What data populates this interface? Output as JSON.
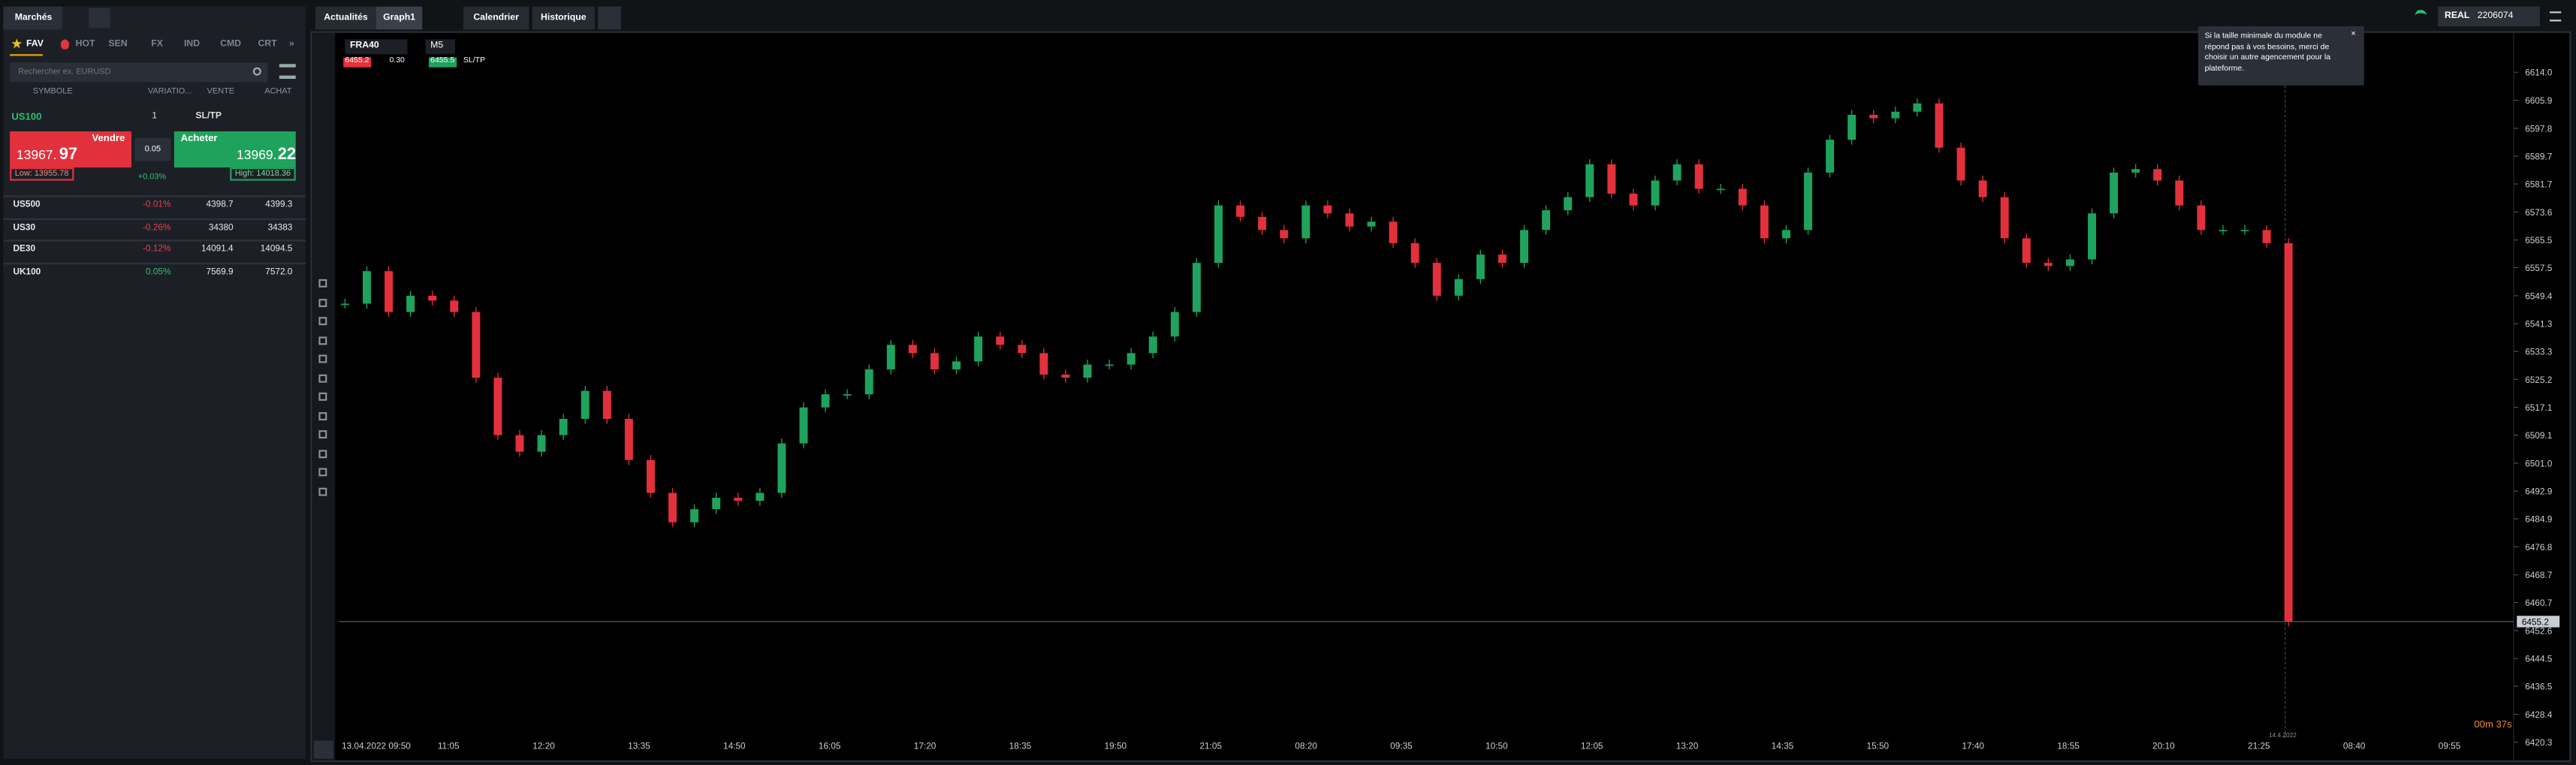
{
  "left_panel": {
    "title": "Marchés",
    "tabs": [
      "FAV",
      "HOT",
      "SEN",
      "FX",
      "IND",
      "CMD",
      "CRT",
      "»"
    ],
    "search_placeholder": "Rechercher ex. EURUSD",
    "columns": [
      "SYMBOLE",
      "VARIATIO...",
      "VENTE",
      "ACHAT"
    ],
    "active": {
      "symbol": "US100",
      "quantity": "1",
      "sltp": "SL/TP",
      "sell_label": "Vendre",
      "sell_price": "13967.",
      "sell_price_big": "97",
      "buy_label": "Acheter",
      "buy_price": "13969.",
      "buy_price_big": "22",
      "spread": "0.05",
      "low": "Low: 13955.78",
      "high": "High: 14018.36",
      "change": "+0.03%"
    },
    "rows": [
      [
        "US500",
        "-0.01%",
        "4398.7",
        "4399.3"
      ],
      [
        "US30",
        "-0.26%",
        "34380",
        "34383"
      ],
      [
        "DE30",
        "-0.12%",
        "14091.4",
        "14094.5"
      ],
      [
        "UK100",
        "0.05%",
        "7569.9",
        "7572.0"
      ]
    ]
  },
  "top_tabs": [
    "Actualités",
    "Graph1",
    "Calendrier",
    "Historique"
  ],
  "account": {
    "mode": "REAL",
    "id": "2206074"
  },
  "notification": "Si la taille minimale du module ne répond pas à vos besoins, merci de choisir un autre agencement pour la plateforme.",
  "chart": {
    "symbol": "FRA40",
    "timeframe": "M5",
    "bid": "6455.2",
    "spread": "0.30",
    "ask": "6455.5",
    "sltp": "SL/TP",
    "yticks": [
      {
        "value": 6614.0,
        "label": "6614.0"
      },
      {
        "value": 6605.9,
        "label": "6605.9"
      },
      {
        "value": 6597.8,
        "label": "6597.8"
      },
      {
        "value": 6589.7,
        "label": "6589.7"
      },
      {
        "value": 6581.7,
        "label": "6581.7"
      },
      {
        "value": 6573.6,
        "label": "6573.6"
      },
      {
        "value": 6565.5,
        "label": "6565.5"
      },
      {
        "value": 6557.5,
        "label": "6557.5"
      },
      {
        "value": 6549.4,
        "label": "6549.4"
      },
      {
        "value": 6541.3,
        "label": "6541.3"
      },
      {
        "value": 6533.3,
        "label": "6533.3"
      },
      {
        "value": 6525.2,
        "label": "6525.2"
      },
      {
        "value": 6517.1,
        "label": "6517.1"
      },
      {
        "value": 6509.1,
        "label": "6509.1"
      },
      {
        "value": 6501.0,
        "label": "6501.0"
      },
      {
        "value": 6492.9,
        "label": "6492.9"
      },
      {
        "value": 6484.9,
        "label": "6484.9"
      },
      {
        "value": 6476.8,
        "label": "6476.8"
      },
      {
        "value": 6468.7,
        "label": "6468.7"
      },
      {
        "value": 6460.7,
        "label": "6460.7"
      },
      {
        "value": 6452.6,
        "label": "6452.6"
      },
      {
        "value": 6444.5,
        "label": "6444.5"
      },
      {
        "value": 6436.5,
        "label": "6436.5"
      },
      {
        "value": 6428.4,
        "label": "6428.4"
      },
      {
        "value": 6420.3,
        "label": "6420.3"
      }
    ],
    "x_labels": [
      "13.04.2022 09:50",
      "11:05",
      "12:20",
      "13:35",
      "14:50",
      "16:05",
      "17:20",
      "18:35",
      "19:50",
      "21:05",
      "08:20",
      "09:35",
      "10:50",
      "12:05",
      "13:20",
      "14:35",
      "15:50",
      "17:40",
      "18:55",
      "20:10",
      "21:25",
      "08:40",
      "09:55"
    ],
    "last_price": 6455.2,
    "countdown": "00m 37s",
    "date_marker": "14.4.2022",
    "closes": [
      6547.1,
      6556.5,
      6544.7,
      6549.4,
      6548.0,
      6544.7,
      6525.7,
      6509.1,
      6504.3,
      6509.1,
      6513.8,
      6521.9,
      6513.8,
      6501.9,
      6492.4,
      6483.9,
      6487.7,
      6491.0,
      6490.1,
      6492.4,
      6506.7,
      6517.1,
      6520.9,
      6520.9,
      6528.1,
      6535.2,
      6532.8,
      6528.1,
      6530.4,
      6537.6,
      6535.2,
      6532.8,
      6526.6,
      6525.7,
      6529.5,
      6529.5,
      6532.8,
      6537.6,
      6544.7,
      6558.9,
      6575.5,
      6572.2,
      6568.4,
      6566.0,
      6575.5,
      6573.2,
      6569.4,
      6570.8,
      6564.6,
      6558.9,
      6549.4,
      6554.2,
      6561.3,
      6558.9,
      6568.4,
      6574.1,
      6577.9,
      6587.4,
      6578.9,
      6575.5,
      6582.7,
      6587.4,
      6580.3,
      6580.3,
      6575.5,
      6566.0,
      6568.4,
      6585.0,
      6594.5,
      6601.7,
      6600.7,
      6602.6,
      6605.0,
      6592.2,
      6582.7,
      6577.9,
      6566.0,
      6558.9,
      6558.0,
      6559.9,
      6573.2,
      6585.0,
      6586.0,
      6582.7,
      6575.5,
      6568.4,
      6568.4,
      6568.4,
      6564.6,
      6455.2
    ],
    "up_color": "#1fa35c",
    "down_color": "#e2313c"
  }
}
